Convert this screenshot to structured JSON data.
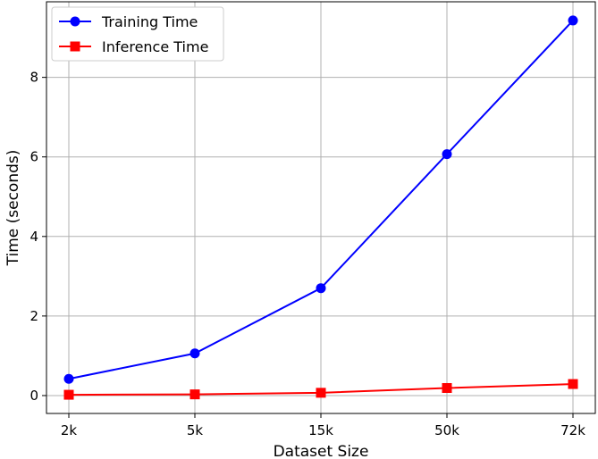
{
  "chart_data": {
    "type": "line",
    "categories": [
      "2k",
      "5k",
      "15k",
      "50k",
      "72k"
    ],
    "series": [
      {
        "name": "Training Time",
        "values": [
          0.42,
          1.06,
          2.7,
          6.07,
          9.43
        ],
        "color": "#0000ff",
        "marker": "circle"
      },
      {
        "name": "Inference Time",
        "values": [
          0.02,
          0.03,
          0.07,
          0.19,
          0.29
        ],
        "color": "#ff0000",
        "marker": "square"
      }
    ],
    "xlabel": "Dataset Size",
    "ylabel": "Time (seconds)",
    "ylim": [
      -0.45,
      9.9
    ],
    "yticks": [
      0,
      2,
      4,
      6,
      8
    ],
    "grid": true,
    "legend_position": "top-left"
  }
}
